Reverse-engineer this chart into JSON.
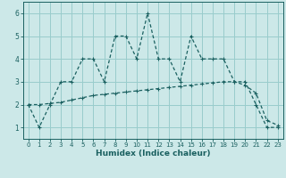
{
  "xlabel": "Humidex (Indice chaleur)",
  "bg_color": "#cce8e8",
  "grid_color": "#99cccc",
  "line_color": "#1a6060",
  "xlim": [
    -0.5,
    23.5
  ],
  "ylim": [
    0.5,
    6.5
  ],
  "xticks": [
    0,
    1,
    2,
    3,
    4,
    5,
    6,
    7,
    8,
    9,
    10,
    11,
    12,
    13,
    14,
    15,
    16,
    17,
    18,
    19,
    20,
    21,
    22,
    23
  ],
  "yticks": [
    1,
    2,
    3,
    4,
    5,
    6
  ],
  "line1_x": [
    0,
    1,
    2,
    3,
    4,
    5,
    6,
    7,
    8,
    9,
    10,
    11,
    12,
    13,
    14,
    15,
    16,
    17,
    18,
    19,
    20,
    21,
    22,
    23
  ],
  "line1_y": [
    2,
    1,
    2,
    3,
    3,
    4,
    4,
    3,
    5,
    5,
    4,
    6,
    4,
    4,
    3,
    5,
    4,
    4,
    4,
    3,
    3,
    2,
    1,
    1
  ],
  "line2_x": [
    0,
    1,
    2,
    3,
    4,
    5,
    6,
    7,
    8,
    9,
    10,
    11,
    12,
    13,
    14,
    15,
    16,
    17,
    18,
    19,
    20,
    21,
    22,
    23
  ],
  "line2_y": [
    2.0,
    2.0,
    2.05,
    2.1,
    2.2,
    2.3,
    2.4,
    2.45,
    2.5,
    2.55,
    2.6,
    2.65,
    2.7,
    2.75,
    2.8,
    2.85,
    2.9,
    2.95,
    3.0,
    3.0,
    2.85,
    2.5,
    1.3,
    1.1
  ],
  "tick_fontsize": 5.0,
  "xlabel_fontsize": 6.5,
  "linewidth": 0.9,
  "markersize": 3.5
}
